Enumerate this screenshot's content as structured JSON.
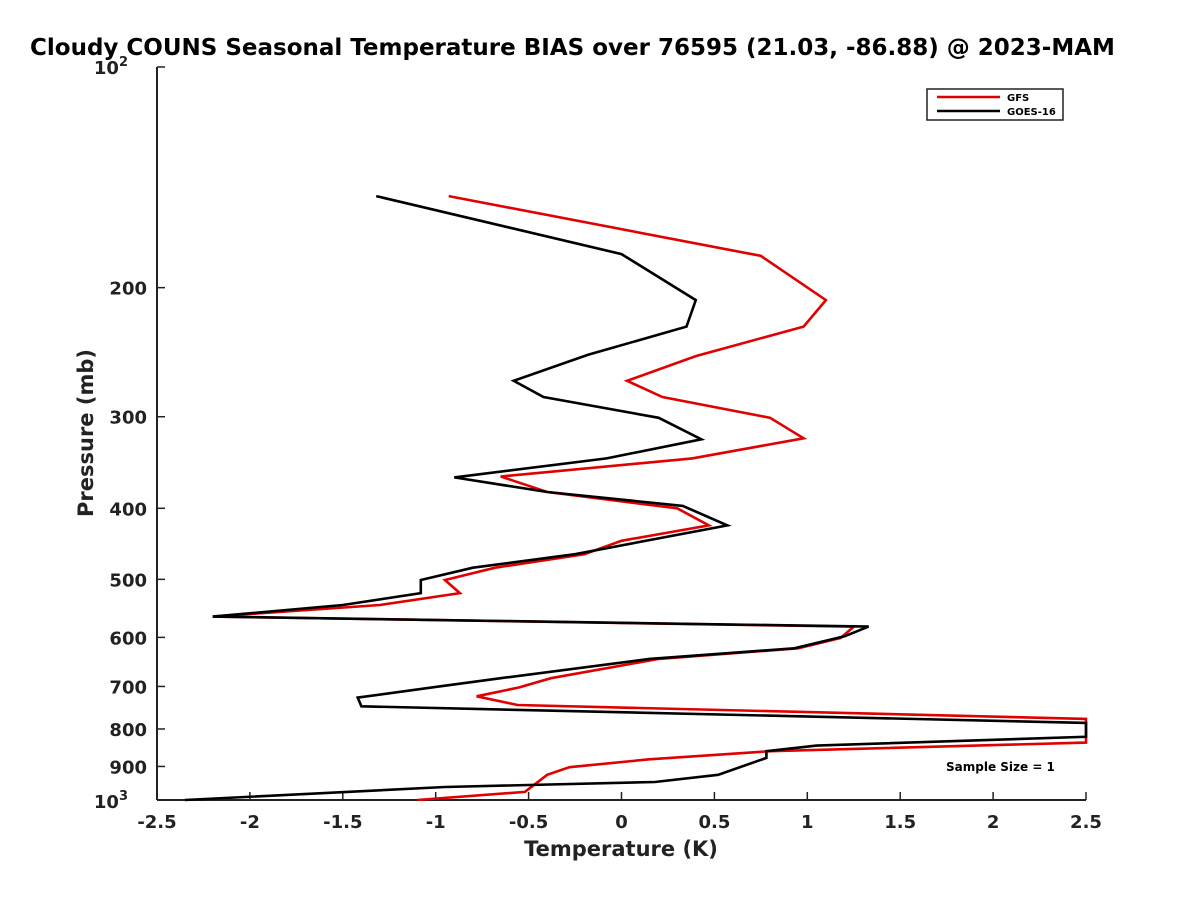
{
  "chart_data": {
    "type": "line",
    "title": "Cloudy COUNS Seasonal Temperature BIAS over 76595 (21.03, -86.88) @ 2023-MAM",
    "xlabel": "Temperature (K)",
    "ylabel": "Pressure (mb)",
    "xlim": [
      -2.5,
      2.5
    ],
    "ylim": [
      100,
      1000
    ],
    "y_scale": "log",
    "y_reversed": true,
    "grid": false,
    "legend_position": "top-right",
    "x_ticks": [
      -2.5,
      -2,
      -1.5,
      -1,
      -0.5,
      0,
      0.5,
      1,
      1.5,
      2,
      2.5
    ],
    "x_tick_labels": [
      "-2.5",
      "-2",
      "-1.5",
      "-1",
      "-0.5",
      "0",
      "0.5",
      "1",
      "1.5",
      "2",
      "2.5"
    ],
    "y_ticks": [
      200,
      300,
      400,
      500,
      600,
      700,
      800,
      900
    ],
    "y_tick_labels": [
      "200",
      "300",
      "400",
      "500",
      "600",
      "700",
      "800",
      "900"
    ],
    "y_top_label": {
      "base": "10",
      "exp": "2"
    },
    "y_bottom_label": {
      "base": "10",
      "exp": "3"
    },
    "series": [
      {
        "name": "GFS",
        "color": "#e00000",
        "points": [
          {
            "t": -0.93,
            "p": 150
          },
          {
            "t": 0.75,
            "p": 181
          },
          {
            "t": 1.1,
            "p": 208
          },
          {
            "t": 0.98,
            "p": 226
          },
          {
            "t": 0.4,
            "p": 248
          },
          {
            "t": 0.03,
            "p": 268
          },
          {
            "t": 0.22,
            "p": 282
          },
          {
            "t": 0.8,
            "p": 301
          },
          {
            "t": 0.98,
            "p": 321
          },
          {
            "t": 0.38,
            "p": 342
          },
          {
            "t": -0.65,
            "p": 362
          },
          {
            "t": -0.4,
            "p": 380
          },
          {
            "t": 0.3,
            "p": 400
          },
          {
            "t": 0.47,
            "p": 422
          },
          {
            "t": 0.0,
            "p": 443
          },
          {
            "t": -0.2,
            "p": 462
          },
          {
            "t": -0.68,
            "p": 482
          },
          {
            "t": -0.95,
            "p": 501
          },
          {
            "t": -0.87,
            "p": 522
          },
          {
            "t": -1.3,
            "p": 542
          },
          {
            "t": -2.2,
            "p": 562
          },
          {
            "t": 1.25,
            "p": 580
          },
          {
            "t": 1.18,
            "p": 601
          },
          {
            "t": 0.95,
            "p": 621
          },
          {
            "t": 0.2,
            "p": 642
          },
          {
            "t": -0.38,
            "p": 682
          },
          {
            "t": -0.55,
            "p": 702
          },
          {
            "t": -0.78,
            "p": 722
          },
          {
            "t": -0.56,
            "p": 742
          },
          {
            "t": 2.5,
            "p": 775
          },
          {
            "t": 2.5,
            "p": 835
          },
          {
            "t": 0.8,
            "p": 858
          },
          {
            "t": 0.15,
            "p": 880
          },
          {
            "t": -0.28,
            "p": 902
          },
          {
            "t": -0.4,
            "p": 924
          },
          {
            "t": -0.52,
            "p": 975
          },
          {
            "t": -1.1,
            "p": 1000
          }
        ]
      },
      {
        "name": "GOES-16",
        "color": "#000000",
        "points": [
          {
            "t": -1.32,
            "p": 150
          },
          {
            "t": 0.0,
            "p": 180
          },
          {
            "t": 0.4,
            "p": 208
          },
          {
            "t": 0.35,
            "p": 226
          },
          {
            "t": -0.18,
            "p": 247
          },
          {
            "t": -0.58,
            "p": 268
          },
          {
            "t": -0.42,
            "p": 282
          },
          {
            "t": 0.2,
            "p": 301
          },
          {
            "t": 0.43,
            "p": 322
          },
          {
            "t": -0.08,
            "p": 342
          },
          {
            "t": -0.9,
            "p": 363
          },
          {
            "t": -0.4,
            "p": 380
          },
          {
            "t": 0.33,
            "p": 397
          },
          {
            "t": 0.57,
            "p": 422
          },
          {
            "t": -0.25,
            "p": 462
          },
          {
            "t": -0.8,
            "p": 482
          },
          {
            "t": -1.08,
            "p": 501
          },
          {
            "t": -1.08,
            "p": 522
          },
          {
            "t": -1.5,
            "p": 542
          },
          {
            "t": -2.2,
            "p": 562
          },
          {
            "t": 1.33,
            "p": 580
          },
          {
            "t": 1.2,
            "p": 598
          },
          {
            "t": 0.93,
            "p": 621
          },
          {
            "t": 0.15,
            "p": 642
          },
          {
            "t": -0.65,
            "p": 682
          },
          {
            "t": -1.0,
            "p": 701
          },
          {
            "t": -1.42,
            "p": 725
          },
          {
            "t": -1.4,
            "p": 745
          },
          {
            "t": 2.5,
            "p": 785
          },
          {
            "t": 2.5,
            "p": 820
          },
          {
            "t": 1.05,
            "p": 843
          },
          {
            "t": 0.78,
            "p": 858
          },
          {
            "t": 0.78,
            "p": 876
          },
          {
            "t": 0.52,
            "p": 924
          },
          {
            "t": 0.18,
            "p": 945
          },
          {
            "t": -0.95,
            "p": 960
          },
          {
            "t": -2.35,
            "p": 1000
          }
        ]
      }
    ],
    "annotation": "Sample Size = 1"
  }
}
